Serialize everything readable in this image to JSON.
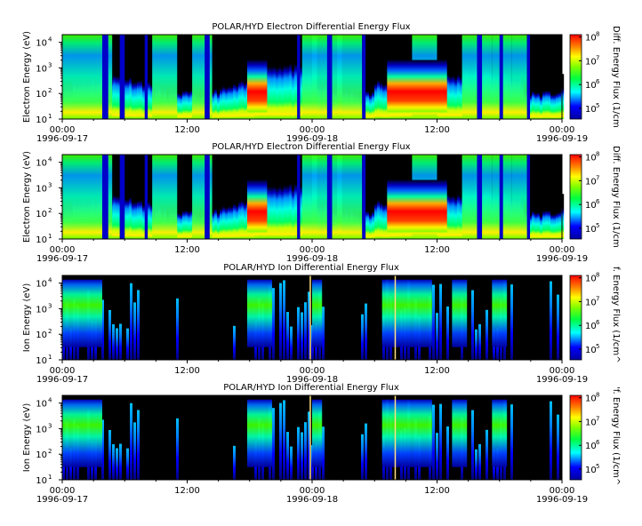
{
  "chart_data": [
    {
      "type": "heatmap",
      "title": "POLAR/HYD  Electron Differential Energy Flux",
      "ylabel": "Electron Energy (eV)",
      "colorbar_label": "Diff. Energy Flux (1/cm",
      "y_scale": "log",
      "y_ticks": [
        {
          "b": "10",
          "e": "1"
        },
        {
          "b": "10",
          "e": "2"
        },
        {
          "b": "10",
          "e": "3"
        },
        {
          "b": "10",
          "e": "4"
        }
      ],
      "cbar_ticks": [
        {
          "b": "10",
          "e": "5"
        },
        {
          "b": "10",
          "e": "6"
        },
        {
          "b": "10",
          "e": "7"
        },
        {
          "b": "10",
          "e": "8"
        }
      ],
      "x_ticks": [
        "00:00",
        "12:00",
        "00:00",
        "12:00",
        "00:00"
      ],
      "x_dates": [
        "1996-09-17",
        "1996-09-18",
        "1996-09-19"
      ],
      "species": "electron"
    },
    {
      "type": "heatmap",
      "title": "POLAR/HYD  Electron Differential Energy Flux",
      "ylabel": "Electron Energy (eV)",
      "colorbar_label": "Diff. Energy Flux (1/cm",
      "y_scale": "log",
      "y_ticks": [
        {
          "b": "10",
          "e": "1"
        },
        {
          "b": "10",
          "e": "2"
        },
        {
          "b": "10",
          "e": "3"
        },
        {
          "b": "10",
          "e": "4"
        }
      ],
      "cbar_ticks": [
        {
          "b": "10",
          "e": "5"
        },
        {
          "b": "10",
          "e": "6"
        },
        {
          "b": "10",
          "e": "7"
        },
        {
          "b": "10",
          "e": "8"
        }
      ],
      "x_ticks": [
        "00:00",
        "12:00",
        "00:00",
        "12:00",
        "00:00"
      ],
      "x_dates": [
        "1996-09-17",
        "1996-09-18",
        "1996-09-19"
      ],
      "species": "electron"
    },
    {
      "type": "heatmap",
      "title": "POLAR/HYD  Ion Differential Energy Flux",
      "ylabel": "Ion Energy (eV)",
      "colorbar_label": "f. Energy Flux (1/cm^",
      "y_scale": "log",
      "y_ticks": [
        {
          "b": "10",
          "e": "1"
        },
        {
          "b": "10",
          "e": "2"
        },
        {
          "b": "10",
          "e": "3"
        },
        {
          "b": "10",
          "e": "4"
        }
      ],
      "cbar_ticks": [
        {
          "b": "10",
          "e": "5"
        },
        {
          "b": "10",
          "e": "6"
        },
        {
          "b": "10",
          "e": "7"
        },
        {
          "b": "10",
          "e": "8"
        }
      ],
      "x_ticks": [
        "00:00",
        "12:00",
        "00:00",
        "12:00",
        "00:00"
      ],
      "x_dates": [
        "1996-09-17",
        "1996-09-18",
        "1996-09-19"
      ],
      "species": "ion"
    },
    {
      "type": "heatmap",
      "title": "POLAR/HYD  Ion Differential Energy Flux",
      "ylabel": "Ion Energy (eV)",
      "colorbar_label": "'f. Energy Flux (1/cm^",
      "y_scale": "log",
      "y_ticks": [
        {
          "b": "10",
          "e": "1"
        },
        {
          "b": "10",
          "e": "2"
        },
        {
          "b": "10",
          "e": "3"
        },
        {
          "b": "10",
          "e": "4"
        }
      ],
      "cbar_ticks": [
        {
          "b": "10",
          "e": "5"
        },
        {
          "b": "10",
          "e": "6"
        },
        {
          "b": "10",
          "e": "7"
        },
        {
          "b": "10",
          "e": "8"
        }
      ],
      "x_ticks": [
        "00:00",
        "12:00",
        "00:00",
        "12:00",
        "00:00"
      ],
      "x_dates": [
        "1996-09-17",
        "1996-09-18",
        "1996-09-19"
      ],
      "species": "ion"
    }
  ]
}
